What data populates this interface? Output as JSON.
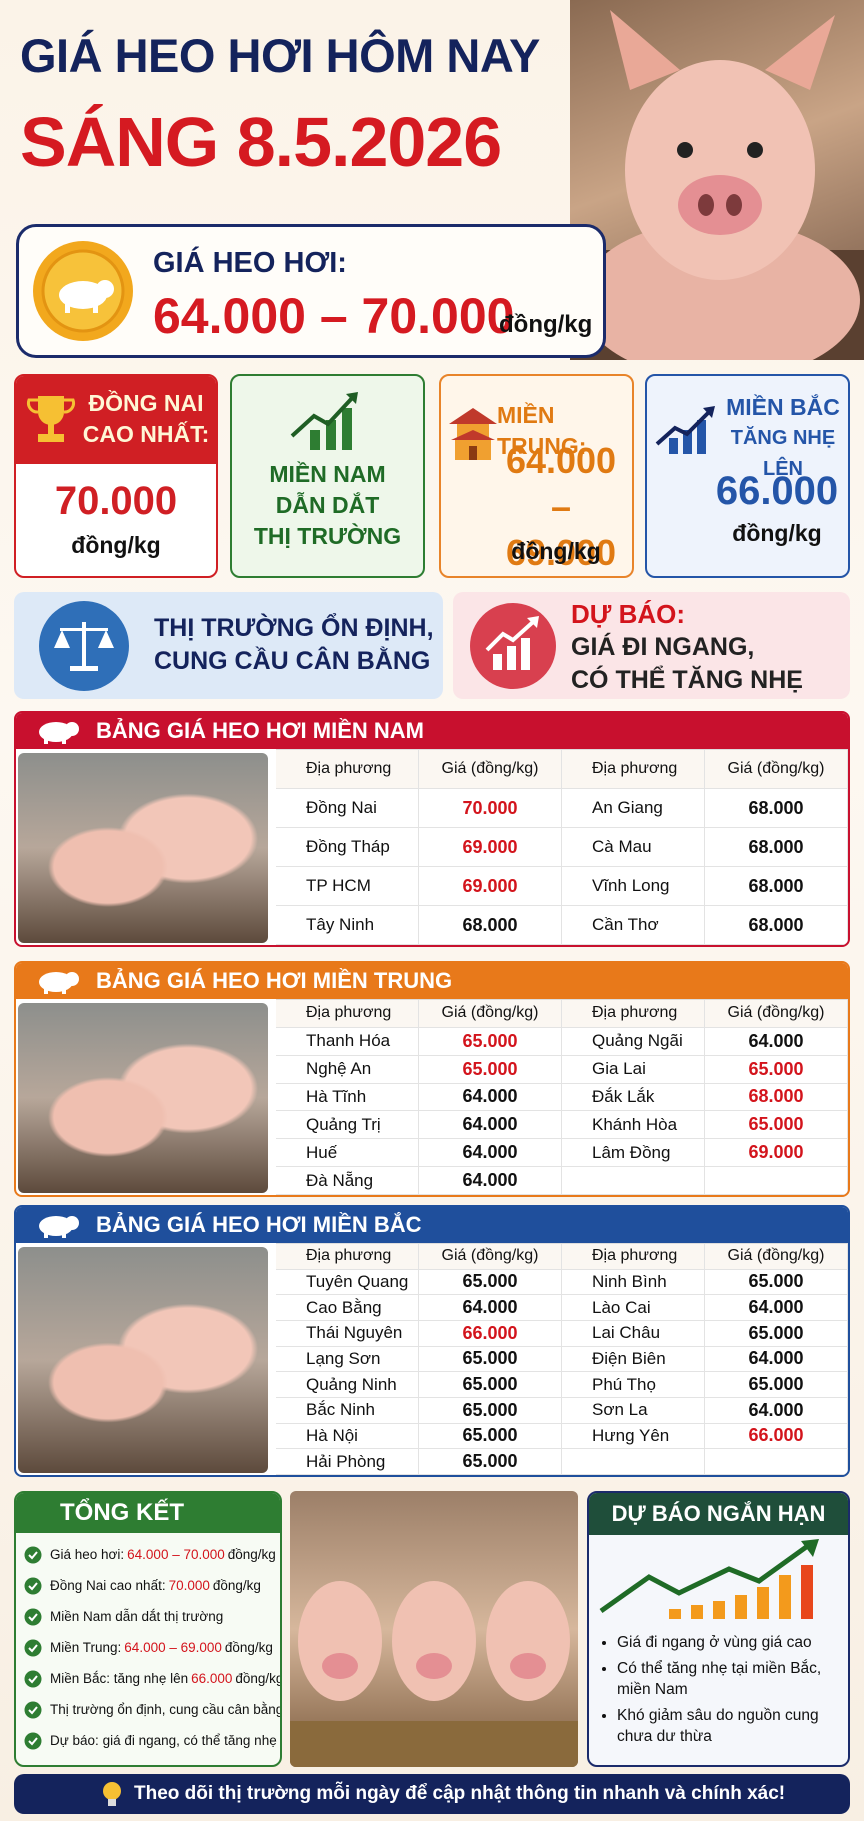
{
  "header": {
    "title": "GIÁ HEO HƠI HÔM NAY",
    "subtitle": "SÁNG 8.5.2026"
  },
  "price_box": {
    "label": "GIÁ HEO HƠI:",
    "range": "64.000 – 70.000",
    "unit": "đồng/kg"
  },
  "cards": [
    {
      "lines": [
        "ĐỒNG NAI",
        "CAO NHẤT:"
      ],
      "price": "70.000",
      "unit": "đồng/kg"
    },
    {
      "lines": [
        "MIỀN NAM",
        "DẪN DẮT",
        "THỊ TRƯỜNG"
      ]
    },
    {
      "lines": [
        "MIỀN TRUNG:"
      ],
      "price": "64.000 – 69.000",
      "unit": "đồng/kg"
    },
    {
      "lines": [
        "MIỀN BẮC",
        "TĂNG NHẸ LÊN"
      ],
      "price": "66.000",
      "unit": "đồng/kg"
    }
  ],
  "info": [
    {
      "lines": [
        "THỊ TRƯỜNG ỔN ĐỊNH,",
        "CUNG CẦU CÂN BẰNG"
      ]
    },
    {
      "heading": "DỰ BÁO:",
      "lines": [
        "GIÁ ĐI NGANG,",
        "CÓ THỂ TĂNG NHẸ"
      ]
    }
  ],
  "tables": [
    {
      "title": "BẢNG GIÁ HEO HƠI MIỀN NAM",
      "headers": [
        "Địa phương",
        "Giá (đồng/kg)",
        "Địa phương",
        "Giá (đồng/kg)"
      ],
      "left": [
        {
          "place": "Đồng Nai",
          "price": "70.000",
          "color": "#d3141c"
        },
        {
          "place": "Đồng Tháp",
          "price": "69.000",
          "color": "#d3141c"
        },
        {
          "place": "TP HCM",
          "price": "69.000",
          "color": "#d3141c"
        },
        {
          "place": "Tây Ninh",
          "price": "68.000",
          "color": "#111111"
        }
      ],
      "right": [
        {
          "place": "An Giang",
          "price": "68.000",
          "color": "#111111"
        },
        {
          "place": "Cà Mau",
          "price": "68.000",
          "color": "#111111"
        },
        {
          "place": "Vĩnh Long",
          "price": "68.000",
          "color": "#111111"
        },
        {
          "place": "Cần Thơ",
          "price": "68.000",
          "color": "#111111"
        }
      ]
    },
    {
      "title": "BẢNG GIÁ HEO HƠI MIỀN TRUNG",
      "headers": [
        "Địa phương",
        "Giá (đồng/kg)",
        "Địa phương",
        "Giá (đồng/kg)"
      ],
      "left": [
        {
          "place": "Thanh Hóa",
          "price": "65.000",
          "color": "#d3141c"
        },
        {
          "place": "Nghệ An",
          "price": "65.000",
          "color": "#d3141c"
        },
        {
          "place": "Hà Tĩnh",
          "price": "64.000",
          "color": "#111111"
        },
        {
          "place": "Quảng Trị",
          "price": "64.000",
          "color": "#111111"
        },
        {
          "place": "Huế",
          "price": "64.000",
          "color": "#111111"
        },
        {
          "place": "Đà Nẵng",
          "price": "64.000",
          "color": "#111111"
        }
      ],
      "right": [
        {
          "place": "Quảng Ngãi",
          "price": "64.000",
          "color": "#111111"
        },
        {
          "place": "Gia Lai",
          "price": "65.000",
          "color": "#d3141c"
        },
        {
          "place": "Đắk Lắk",
          "price": "68.000",
          "color": "#d3141c"
        },
        {
          "place": "Khánh Hòa",
          "price": "65.000",
          "color": "#d3141c"
        },
        {
          "place": "Lâm Đồng",
          "price": "69.000",
          "color": "#d3141c"
        }
      ]
    },
    {
      "title": "BẢNG GIÁ HEO HƠI MIỀN BẮC",
      "headers": [
        "Địa phương",
        "Giá (đồng/kg)",
        "Địa phương",
        "Giá (đồng/kg)"
      ],
      "left": [
        {
          "place": "Tuyên Quang",
          "price": "65.000",
          "color": "#111111"
        },
        {
          "place": "Cao Bằng",
          "price": "64.000",
          "color": "#111111"
        },
        {
          "place": "Thái Nguyên",
          "price": "66.000",
          "color": "#d3141c"
        },
        {
          "place": "Lạng Sơn",
          "price": "65.000",
          "color": "#111111"
        },
        {
          "place": "Quảng Ninh",
          "price": "65.000",
          "color": "#111111"
        },
        {
          "place": "Bắc Ninh",
          "price": "65.000",
          "color": "#111111"
        },
        {
          "place": "Hà Nội",
          "price": "65.000",
          "color": "#111111"
        },
        {
          "place": "Hải Phòng",
          "price": "65.000",
          "color": "#111111"
        }
      ],
      "right": [
        {
          "place": "Ninh Bình",
          "price": "65.000",
          "color": "#111111"
        },
        {
          "place": "Lào Cai",
          "price": "64.000",
          "color": "#111111"
        },
        {
          "place": "Lai Châu",
          "price": "65.000",
          "color": "#111111"
        },
        {
          "place": "Điện Biên",
          "price": "64.000",
          "color": "#111111"
        },
        {
          "place": "Phú Thọ",
          "price": "65.000",
          "color": "#111111"
        },
        {
          "place": "Sơn La",
          "price": "64.000",
          "color": "#111111"
        },
        {
          "place": "Hưng Yên",
          "price": "66.000",
          "color": "#d3141c"
        }
      ]
    }
  ],
  "summary": {
    "title": "TỔNG KẾT",
    "items": [
      {
        "before": "Giá heo hơi:",
        "value": "64.000 – 70.000",
        "after": "đồng/kg"
      },
      {
        "before": "Đồng Nai cao nhất:",
        "value": "70.000",
        "after": "đồng/kg"
      },
      {
        "before": "Miền Nam dẫn dắt thị trường"
      },
      {
        "before": "Miền Trung:",
        "value": "64.000 – 69.000",
        "after": "đồng/kg"
      },
      {
        "before": "Miền Bắc: tăng nhẹ lên",
        "value": "66.000",
        "after": "đồng/kg"
      },
      {
        "before": "Thị trường ổn định, cung cầu cân bằng"
      },
      {
        "before": "Dự báo: giá đi ngang, có thể tăng nhẹ"
      }
    ]
  },
  "forecast": {
    "title": "DỰ BÁO NGẮN HẠN",
    "items": [
      "Giá đi ngang ở vùng giá cao",
      "Có thể tăng nhẹ tại miền Bắc, miền Nam",
      "Khó giảm sâu do nguồn cung chưa dư thừa"
    ]
  },
  "footer": "Theo dõi thị trường mỗi ngày để cập nhật thông tin nhanh và chính xác!"
}
